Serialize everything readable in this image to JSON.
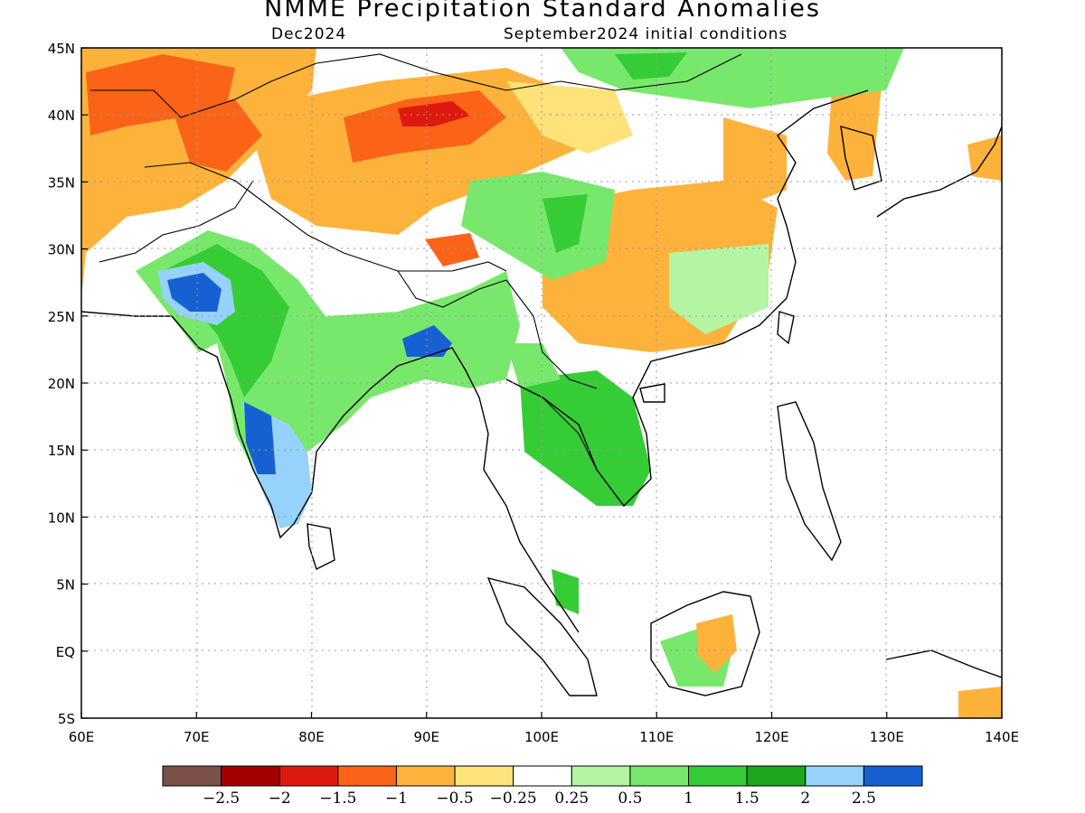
{
  "title": "NMME Precipitation Standard Anomalies",
  "valid_month": "Dec2024",
  "initial_conditions": "September2024 initial conditions",
  "map": {
    "lon_labels": [
      "60E",
      "70E",
      "80E",
      "90E",
      "100E",
      "110E",
      "120E",
      "130E",
      "140E"
    ],
    "lat_labels": [
      "45N",
      "40N",
      "35N",
      "30N",
      "25N",
      "20N",
      "15N",
      "10N",
      "5N",
      "EQ",
      "5S"
    ],
    "lon_range": [
      60,
      140
    ],
    "lat_range": [
      -5,
      45
    ],
    "grid": "dotted"
  },
  "colorbar": {
    "labels": [
      "-2.5",
      "-2",
      "-1.5",
      "-1",
      "-0.5",
      "-0.25",
      "0.25",
      "0.5",
      "1",
      "1.5",
      "2",
      "2.5"
    ],
    "colors": [
      "#7a5048",
      "#a50000",
      "#dd1a0d",
      "#fb6418",
      "#fdb33b",
      "#ffe27a",
      "#ffffff",
      "#b4f5a4",
      "#78e86c",
      "#36cc36",
      "#1ea61e",
      "#96d2fa",
      "#1660d2"
    ]
  }
}
